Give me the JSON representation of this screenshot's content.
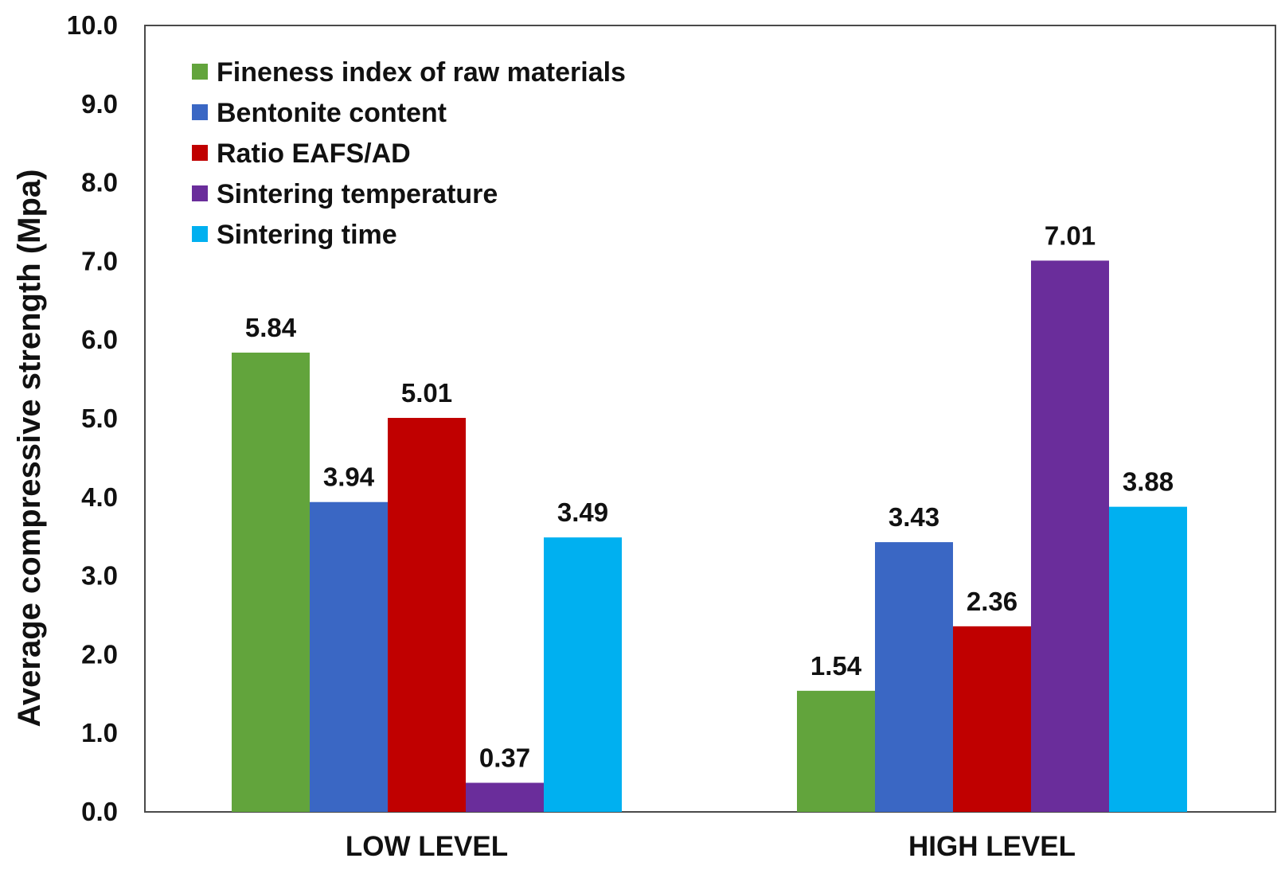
{
  "chart_data": {
    "type": "bar",
    "title": "",
    "xlabel": "",
    "ylabel": "Average compressive strength  (Mpa)",
    "ylim": [
      0,
      10
    ],
    "yticks": [
      "0.0",
      "1.0",
      "2.0",
      "3.0",
      "4.0",
      "5.0",
      "6.0",
      "7.0",
      "8.0",
      "9.0",
      "10.0"
    ],
    "categories": [
      "LOW LEVEL",
      "HIGH LEVEL"
    ],
    "series": [
      {
        "name": "Fineness index of raw materials",
        "color": "#62a43c",
        "values": [
          5.84,
          1.54
        ],
        "labels": [
          "5.84",
          "1.54"
        ]
      },
      {
        "name": "Bentonite content",
        "color": "#3a67c4",
        "values": [
          3.94,
          3.43
        ],
        "labels": [
          "3.94",
          "3.43"
        ]
      },
      {
        "name": "Ratio EAFS/AD",
        "color": "#c00000",
        "values": [
          5.01,
          2.36
        ],
        "labels": [
          "5.01",
          "2.36"
        ]
      },
      {
        "name": "Sintering temperature",
        "color": "#6a2d9b",
        "values": [
          0.37,
          7.01
        ],
        "labels": [
          "0.37",
          "7.01"
        ]
      },
      {
        "name": "Sintering time",
        "color": "#00b0f0",
        "values": [
          3.49,
          3.88
        ],
        "labels": [
          "3.49",
          "3.88"
        ]
      }
    ],
    "legend": "top-left, inside plot",
    "grid": false
  }
}
